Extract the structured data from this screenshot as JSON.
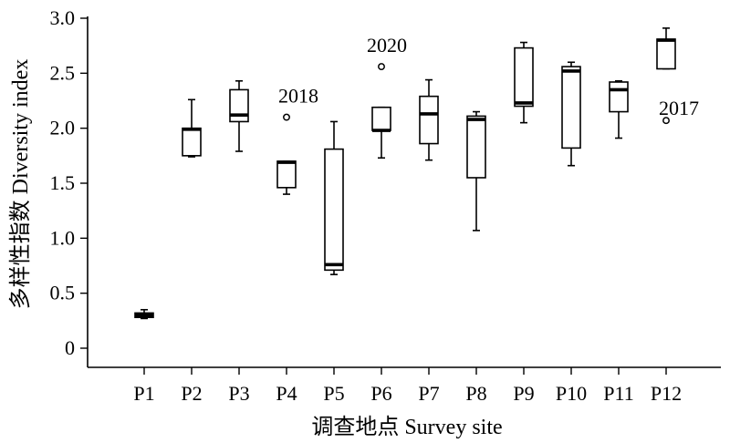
{
  "chart_data": {
    "type": "boxplot",
    "xlabel": "调查地点 Survey site",
    "ylabel": "多样性指数 Diversity index",
    "ylim": [
      -0.17,
      3.0
    ],
    "yticks": [
      "0",
      "0.5",
      "1.0",
      "1.5",
      "2.0",
      "2.5",
      "3.0"
    ],
    "ytick_values": [
      0,
      0.5,
      1.0,
      1.5,
      2.0,
      2.5,
      3.0
    ],
    "categories": [
      "P1",
      "P2",
      "P3",
      "P4",
      "P5",
      "P6",
      "P7",
      "P8",
      "P9",
      "P10",
      "P11",
      "P12"
    ],
    "boxes": [
      {
        "min": 0.27,
        "q1": 0.28,
        "median": 0.3,
        "q3": 0.32,
        "max": 0.35
      },
      {
        "min": 1.74,
        "q1": 1.75,
        "median": 1.99,
        "q3": 2.0,
        "max": 2.26
      },
      {
        "min": 1.79,
        "q1": 2.06,
        "median": 2.12,
        "q3": 2.35,
        "max": 2.43
      },
      {
        "min": 1.4,
        "q1": 1.46,
        "median": 1.69,
        "q3": 1.7,
        "max": 1.7
      },
      {
        "min": 0.67,
        "q1": 0.71,
        "median": 0.76,
        "q3": 1.81,
        "max": 2.06
      },
      {
        "min": 1.73,
        "q1": 1.98,
        "median": 1.98,
        "q3": 2.19,
        "max": 2.19
      },
      {
        "min": 1.71,
        "q1": 1.86,
        "median": 2.13,
        "q3": 2.29,
        "max": 2.44
      },
      {
        "min": 1.07,
        "q1": 1.55,
        "median": 2.08,
        "q3": 2.11,
        "max": 2.15
      },
      {
        "min": 2.05,
        "q1": 2.2,
        "median": 2.23,
        "q3": 2.73,
        "max": 2.78
      },
      {
        "min": 1.66,
        "q1": 1.82,
        "median": 2.52,
        "q3": 2.56,
        "max": 2.6
      },
      {
        "min": 1.91,
        "q1": 2.15,
        "median": 2.35,
        "q3": 2.42,
        "max": 2.43
      },
      {
        "min": 2.54,
        "q1": 2.54,
        "median": 2.8,
        "q3": 2.81,
        "max": 2.91
      }
    ],
    "outliers": [
      {
        "category": "P4",
        "value": 2.1,
        "label": "2018"
      },
      {
        "category": "P6",
        "value": 2.56,
        "label": "2020"
      },
      {
        "category": "P12",
        "value": 2.07,
        "label": "2017"
      }
    ]
  }
}
